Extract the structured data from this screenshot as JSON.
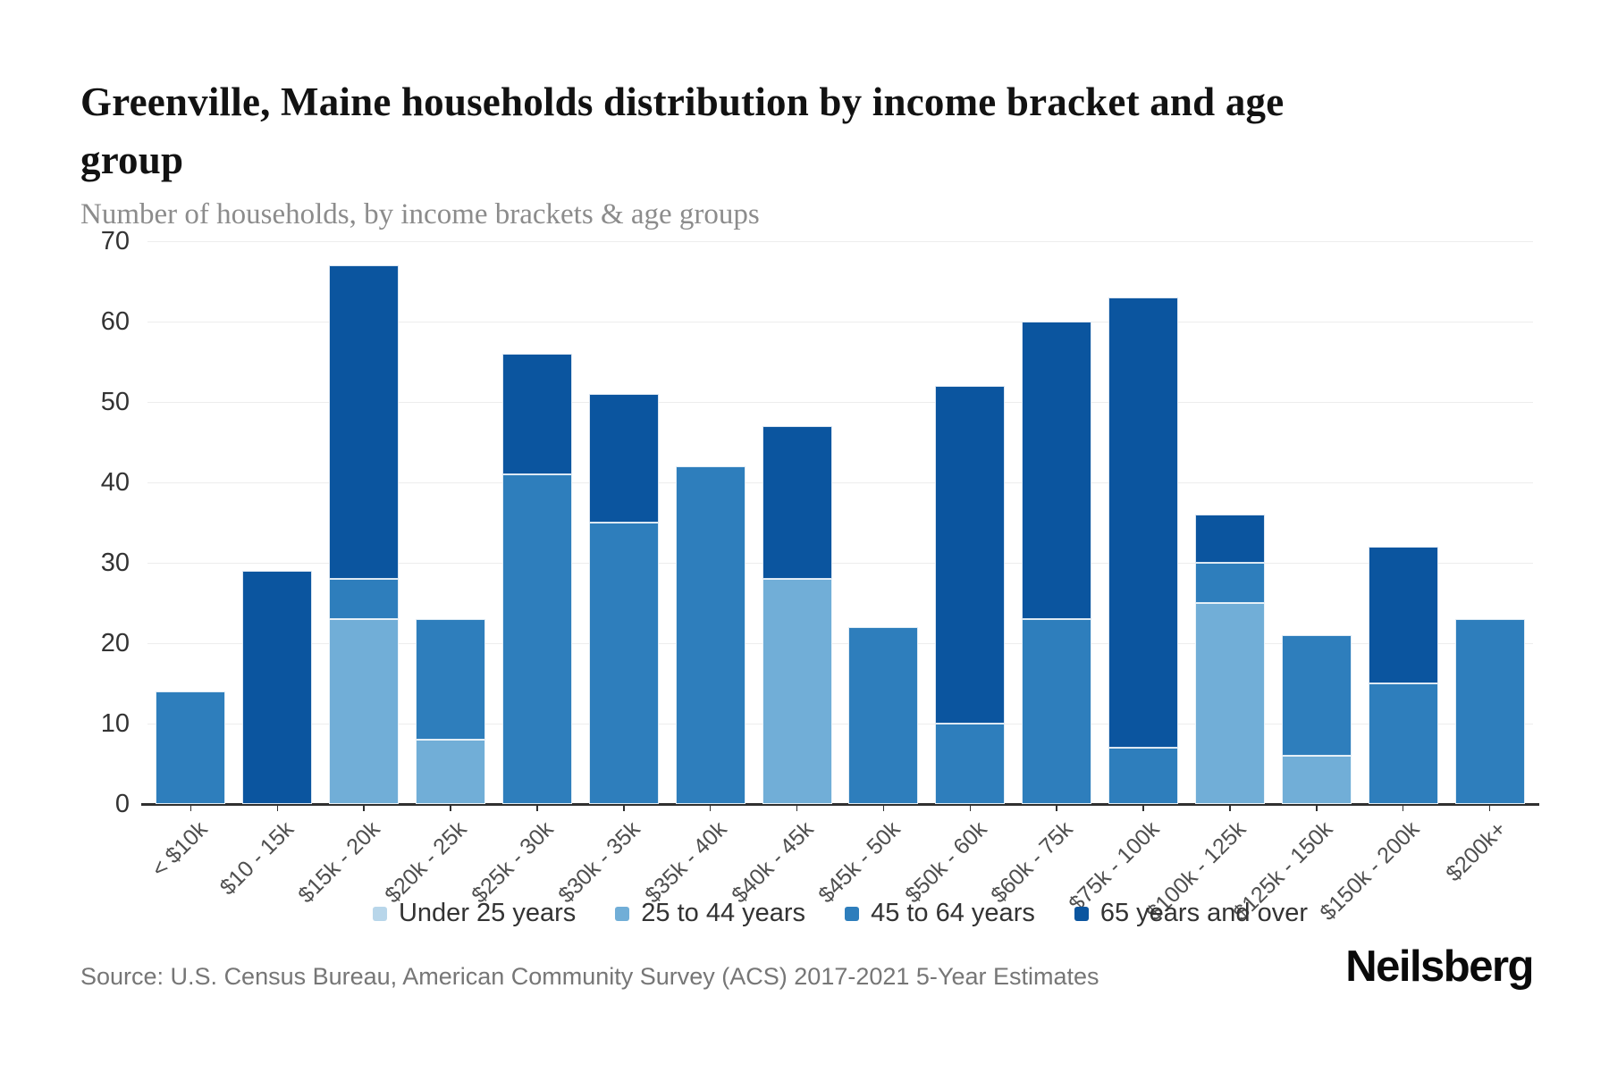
{
  "header": {
    "title": "Greenville, Maine households distribution by income bracket and age group",
    "subtitle": "Number of households, by income brackets & age groups"
  },
  "chart_data": {
    "type": "bar",
    "stacked": true,
    "title": "Greenville, Maine households distribution by income bracket and age group",
    "subtitle": "Number of households, by income brackets & age groups",
    "xlabel": "",
    "ylabel": "",
    "ylim": [
      0,
      70
    ],
    "ytick_interval": 10,
    "grid": true,
    "legend_position": "bottom",
    "categories": [
      "< $10k",
      "$10 - 15k",
      "$15k - 20k",
      "$20k - 25k",
      "$25k - 30k",
      "$30k - 35k",
      "$35k - 40k",
      "$40k - 45k",
      "$45k - 50k",
      "$50k - 60k",
      "$60k - 75k",
      "$75k - 100k",
      "$100k - 125k",
      "$125k - 150k",
      "$150k - 200k",
      "$200k+"
    ],
    "series": [
      {
        "name": "Under 25 years",
        "color": "#b8d6ea",
        "values": [
          0,
          0,
          0,
          0,
          0,
          0,
          0,
          0,
          0,
          0,
          0,
          0,
          0,
          0,
          0,
          0
        ]
      },
      {
        "name": "25 to 44 years",
        "color": "#71aed7",
        "values": [
          0,
          0,
          23,
          8,
          0,
          0,
          0,
          28,
          0,
          0,
          0,
          0,
          25,
          6,
          0,
          0
        ]
      },
      {
        "name": "45 to 64 years",
        "color": "#2e7ebc",
        "values": [
          14,
          0,
          5,
          15,
          41,
          35,
          42,
          0,
          22,
          10,
          23,
          7,
          5,
          15,
          15,
          23
        ]
      },
      {
        "name": "65 years and over",
        "color": "#0b559f",
        "values": [
          0,
          29,
          39,
          0,
          15,
          16,
          0,
          19,
          0,
          42,
          37,
          56,
          6,
          0,
          17,
          0
        ]
      }
    ],
    "totals": [
      14,
      29,
      67,
      23,
      56,
      51,
      42,
      47,
      22,
      52,
      60,
      63,
      36,
      21,
      32,
      23
    ]
  },
  "style": {
    "grid_color": "#ededed",
    "axis_color": "#303030",
    "ytick_color": "#333333",
    "xtick_color": "#4f4f4f",
    "legend_text_color": "#333333"
  },
  "footer": {
    "source": "Source: U.S. Census Bureau, American Community Survey (ACS) 2017-2021 5-Year Estimates",
    "logo": "Neilsberg"
  }
}
